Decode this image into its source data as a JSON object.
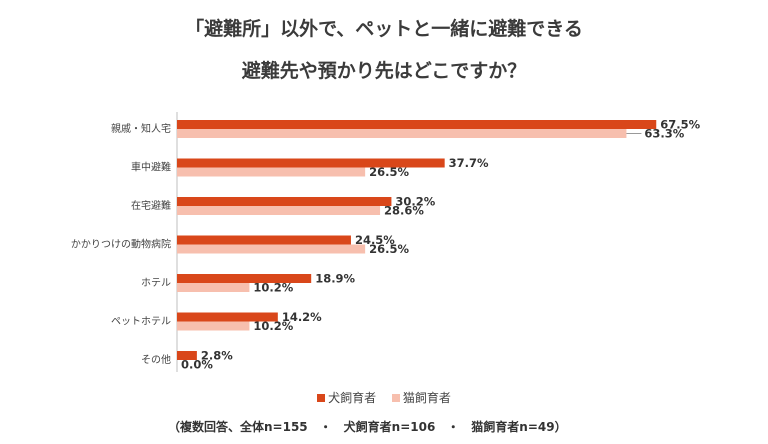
{
  "title_line1": "「避難所」以外で、ペットと一緒に避難できる",
  "title_line2": "避難先や預かり先はどこですか？",
  "chart_data": {
    "type": "bar",
    "orientation": "horizontal",
    "categories": [
      "親戚・知人宅",
      "車中避難",
      "在宅避難",
      "かかりつけの動物病院",
      "ホテル",
      "ペットホテル",
      "その他"
    ],
    "series": [
      {
        "name": "犬飼育者",
        "color": "#d9471a",
        "values": [
          67.5,
          37.7,
          30.2,
          24.5,
          18.9,
          14.2,
          2.8
        ]
      },
      {
        "name": "猫飼育者",
        "color": "#f7bfae",
        "values": [
          63.3,
          26.5,
          28.6,
          26.5,
          10.2,
          10.2,
          0.0
        ]
      }
    ],
    "xlim": [
      0,
      70
    ],
    "value_suffix": "%"
  },
  "legend": {
    "dog": "犬飼育者",
    "cat": "猫飼育者"
  },
  "note": "（複数回答、全体n=155　・　犬飼育者n=106　・　猫飼育者n=49）"
}
